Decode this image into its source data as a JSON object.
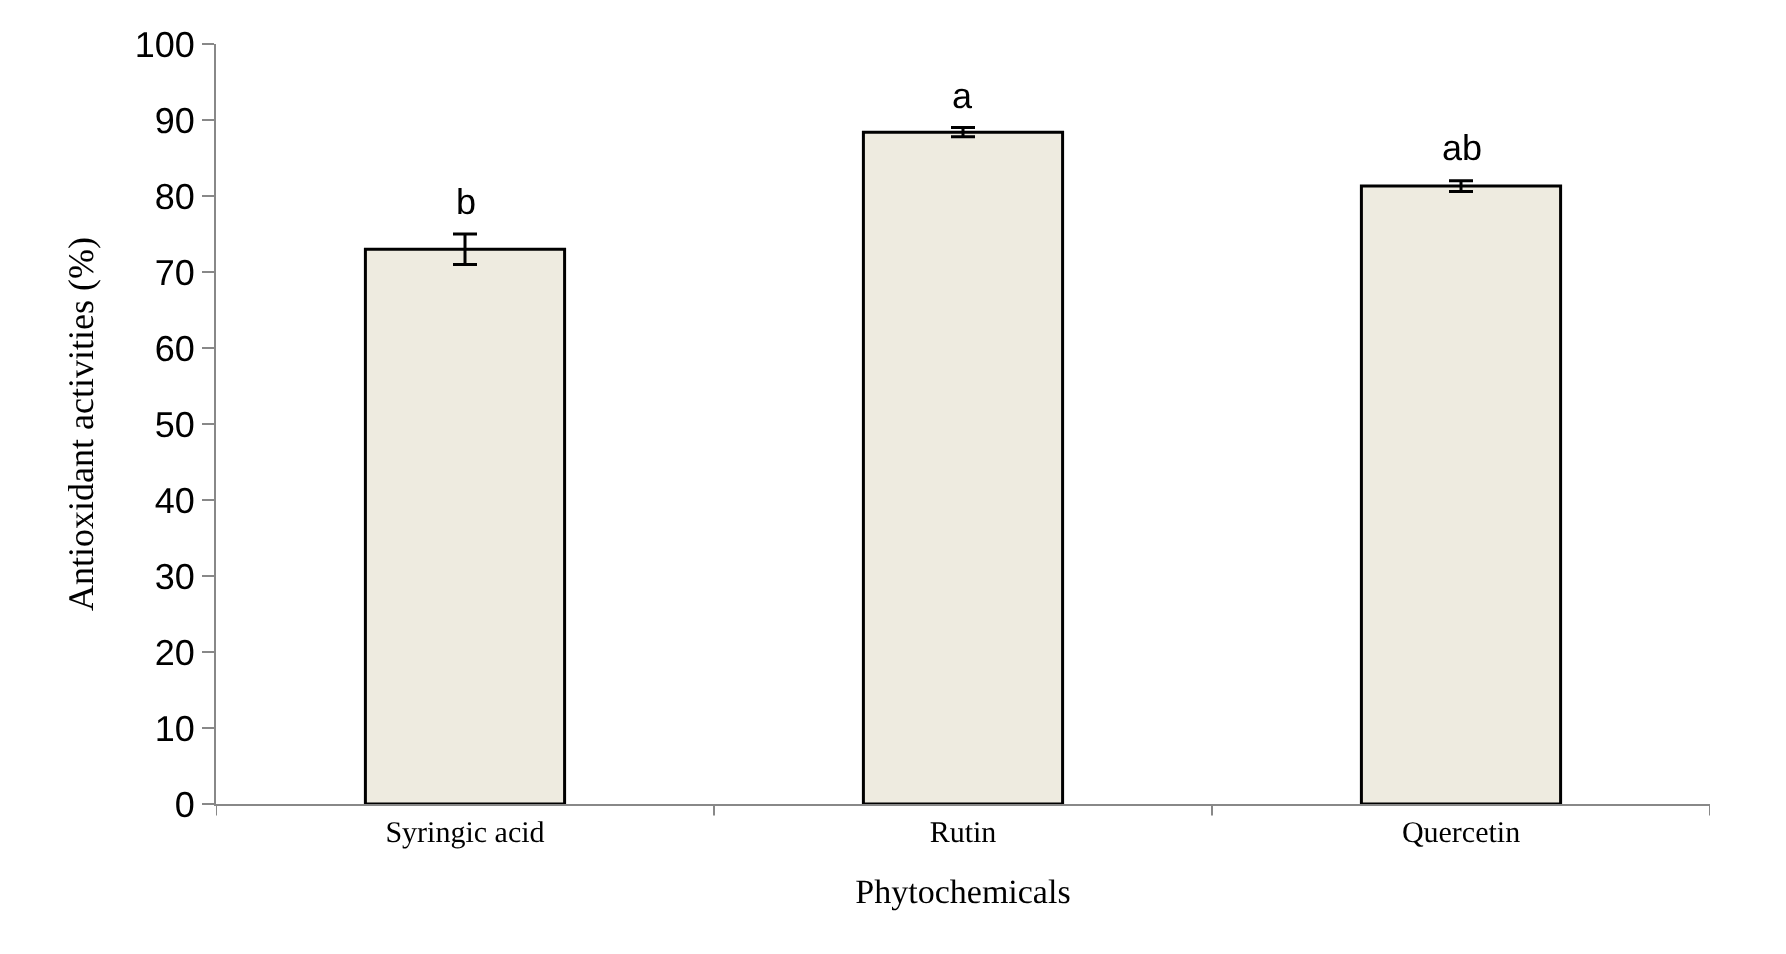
{
  "chart_data": {
    "type": "bar",
    "xlabel": "Phytochemicals",
    "ylabel": "Antioxidant activities (%)",
    "categories": [
      "Syringic acid",
      "Rutin",
      "Quercetin"
    ],
    "values": [
      73.0,
      88.4,
      81.3
    ],
    "errors": [
      2.0,
      0.6,
      0.7
    ],
    "color": "#eeebe0",
    "ylim": [
      0,
      100
    ],
    "yticks": [
      0,
      10,
      20,
      30,
      40,
      50,
      60,
      70,
      80,
      90,
      100
    ],
    "annotations": [
      {
        "text": "b",
        "x": "Syringic acid",
        "y": 75.0
      },
      {
        "text": "a",
        "x": "Rutin",
        "y": 89.0
      },
      {
        "text": "ab",
        "x": "Quercetin",
        "y": 82.0
      }
    ]
  }
}
